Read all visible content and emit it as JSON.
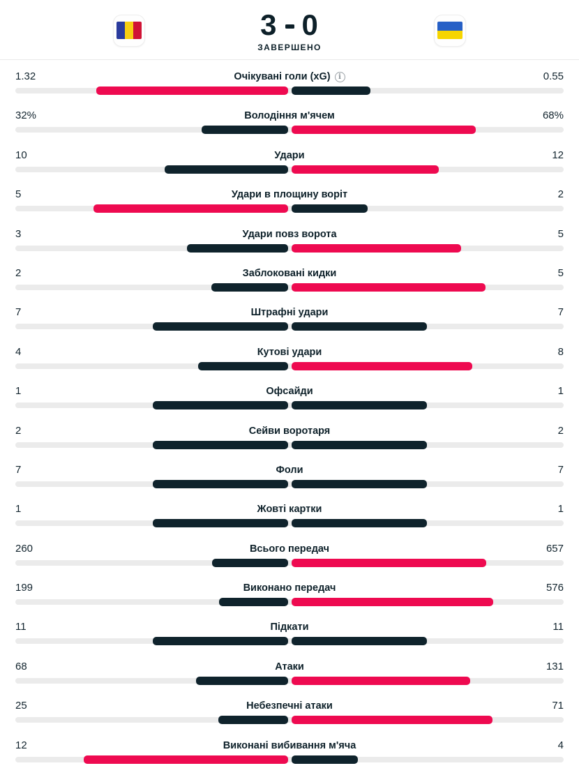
{
  "header": {
    "home_team": "Romania",
    "away_team": "Ukraine",
    "score_home": "3",
    "score_away": "0",
    "status": "ЗАВЕРШЕНО"
  },
  "colors": {
    "highlight": "#ee0a50",
    "dark": "#0f232c",
    "track": "#ebebeb"
  },
  "stats": {
    "rows": [
      {
        "label": "Очікувані голи (xG)",
        "info": true,
        "home": "1.32",
        "away": "0.55"
      },
      {
        "label": "Володіння м'ячем",
        "info": false,
        "home": "32%",
        "away": "68%"
      },
      {
        "label": "Удари",
        "info": false,
        "home": "10",
        "away": "12"
      },
      {
        "label": "Удари в площину воріт",
        "info": false,
        "home": "5",
        "away": "2"
      },
      {
        "label": "Удари повз ворота",
        "info": false,
        "home": "3",
        "away": "5"
      },
      {
        "label": "Заблоковані кидки",
        "info": false,
        "home": "2",
        "away": "5"
      },
      {
        "label": "Штрафні удари",
        "info": false,
        "home": "7",
        "away": "7"
      },
      {
        "label": "Кутові удари",
        "info": false,
        "home": "4",
        "away": "8"
      },
      {
        "label": "Офсайди",
        "info": false,
        "home": "1",
        "away": "1"
      },
      {
        "label": "Сейви воротаря",
        "info": false,
        "home": "2",
        "away": "2"
      },
      {
        "label": "Фоли",
        "info": false,
        "home": "7",
        "away": "7"
      },
      {
        "label": "Жовті картки",
        "info": false,
        "home": "1",
        "away": "1"
      },
      {
        "label": "Всього передач",
        "info": false,
        "home": "260",
        "away": "657"
      },
      {
        "label": "Виконано передач",
        "info": false,
        "home": "199",
        "away": "576"
      },
      {
        "label": "Підкати",
        "info": false,
        "home": "11",
        "away": "11"
      },
      {
        "label": "Атаки",
        "info": false,
        "home": "68",
        "away": "131"
      },
      {
        "label": "Небезпечні атаки",
        "info": false,
        "home": "25",
        "away": "71"
      },
      {
        "label": "Виконані вибивання м'яча",
        "info": false,
        "home": "12",
        "away": "4"
      }
    ]
  }
}
